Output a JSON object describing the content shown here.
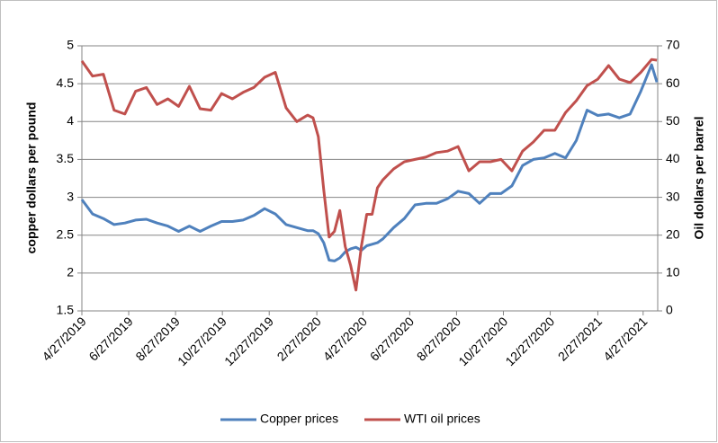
{
  "chart_data": {
    "type": "line",
    "ylabel": "copper dollars per pound",
    "y2label": "Oil dollars per barrel",
    "x": [
      "4/27/2019",
      "5/11/2019",
      "5/25/2019",
      "6/8/2019",
      "6/22/2019",
      "7/6/2019",
      "7/20/2019",
      "8/3/2019",
      "8/17/2019",
      "8/31/2019",
      "9/14/2019",
      "9/28/2019",
      "10/12/2019",
      "10/26/2019",
      "11/9/2019",
      "11/23/2019",
      "12/7/2019",
      "12/21/2019",
      "1/4/2020",
      "1/18/2020",
      "2/1/2020",
      "2/15/2020",
      "2/22/2020",
      "2/29/2020",
      "3/7/2020",
      "3/14/2020",
      "3/21/2020",
      "3/28/2020",
      "4/4/2020",
      "4/11/2020",
      "4/18/2020",
      "4/25/2020",
      "5/2/2020",
      "5/9/2020",
      "5/16/2020",
      "5/23/2020",
      "6/6/2020",
      "6/20/2020",
      "7/4/2020",
      "7/18/2020",
      "8/1/2020",
      "8/15/2020",
      "8/29/2020",
      "9/12/2020",
      "9/26/2020",
      "10/10/2020",
      "10/24/2020",
      "11/7/2020",
      "11/21/2020",
      "12/5/2020",
      "12/19/2020",
      "1/2/2021",
      "1/16/2021",
      "1/30/2021",
      "2/13/2021",
      "2/27/2021",
      "3/13/2021",
      "3/27/2021",
      "4/10/2021",
      "4/24/2021",
      "5/8/2021",
      "5/15/2021"
    ],
    "series": [
      {
        "name": "Copper prices",
        "color": "#4f81bd",
        "axis": "y",
        "values": [
          2.97,
          2.78,
          2.72,
          2.64,
          2.66,
          2.7,
          2.71,
          2.66,
          2.62,
          2.55,
          2.62,
          2.55,
          2.62,
          2.68,
          2.68,
          2.7,
          2.76,
          2.85,
          2.78,
          2.64,
          2.6,
          2.56,
          2.56,
          2.52,
          2.4,
          2.17,
          2.16,
          2.2,
          2.28,
          2.32,
          2.34,
          2.3,
          2.36,
          2.38,
          2.4,
          2.45,
          2.6,
          2.72,
          2.9,
          2.92,
          2.92,
          2.98,
          3.08,
          3.05,
          2.92,
          3.05,
          3.05,
          3.15,
          3.42,
          3.5,
          3.52,
          3.58,
          3.52,
          3.75,
          4.15,
          4.08,
          4.1,
          4.05,
          4.1,
          4.4,
          4.75,
          4.52
        ]
      },
      {
        "name": "WTI oil prices",
        "color": "#c0504d",
        "axis": "y2",
        "values": [
          66,
          62,
          62.5,
          53,
          52,
          58,
          59,
          54.5,
          56,
          54,
          59.3,
          53.4,
          53,
          57.4,
          56,
          57.7,
          59,
          61.7,
          63,
          53.6,
          50,
          51.7,
          51,
          46,
          32,
          19.5,
          21,
          26.5,
          17,
          12,
          5.5,
          17,
          25.5,
          25.5,
          32.5,
          34.6,
          37.5,
          39.4,
          40,
          40.6,
          41.8,
          42.2,
          43.4,
          37,
          39.4,
          39.4,
          40,
          37,
          42.2,
          44.6,
          47.7,
          47.7,
          52.4,
          55.5,
          59.5,
          61.2,
          64.8,
          61.2,
          60.3,
          63,
          66.4,
          66.2
        ]
      }
    ],
    "xlim": [
      "4/27/2019",
      "5/16/2021"
    ],
    "xticks": [
      "4/27/2019",
      "6/27/2019",
      "8/27/2019",
      "10/27/2019",
      "12/27/2019",
      "2/27/2020",
      "4/27/2020",
      "6/27/2020",
      "8/27/2020",
      "10/27/2020",
      "12/27/2020",
      "2/27/2021",
      "4/27/2021"
    ],
    "ylim": [
      1.5,
      5
    ],
    "yticks": [
      1.5,
      2,
      2.5,
      3,
      3.5,
      4,
      4.5,
      5
    ],
    "y2lim": [
      0,
      70
    ],
    "y2ticks": [
      0,
      10,
      20,
      30,
      40,
      50,
      60,
      70
    ],
    "grid": true,
    "legend": "bottom"
  }
}
